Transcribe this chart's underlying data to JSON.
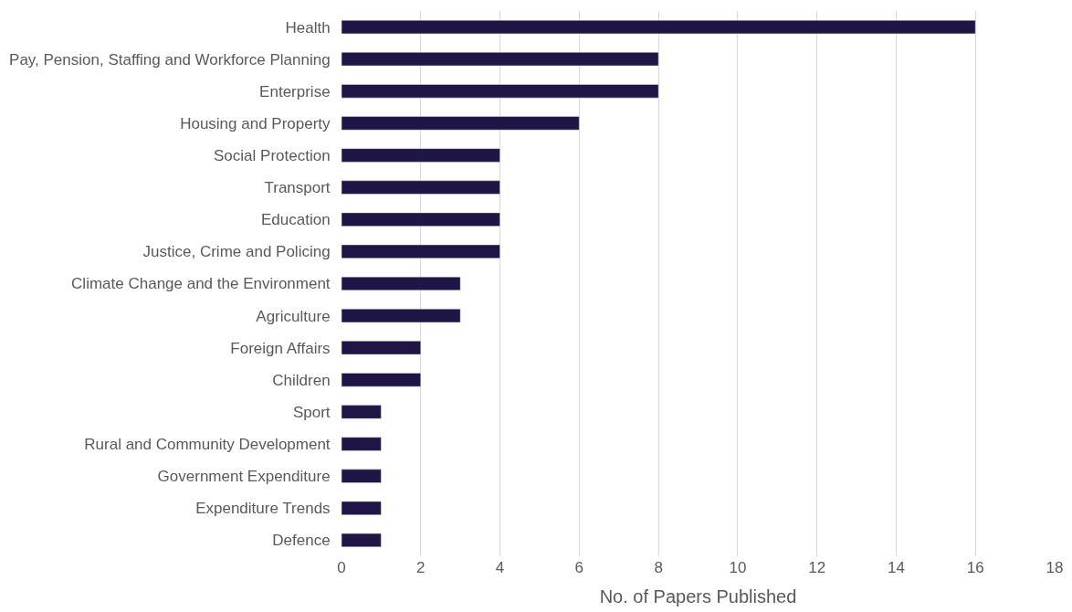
{
  "chart_data": {
    "type": "bar",
    "orientation": "horizontal",
    "xlabel": "No. of Papers Published",
    "categories": [
      "Health",
      "Pay, Pension, Staffing and Workforce Planning",
      "Enterprise",
      "Housing and Property",
      "Social Protection",
      "Transport",
      "Education",
      "Justice, Crime and Policing",
      "Climate Change and the Environment",
      "Agriculture",
      "Foreign Affairs",
      "Children",
      "Sport",
      "Rural and Community Development",
      "Government Expenditure",
      "Expenditure Trends",
      "Defence"
    ],
    "values": [
      16,
      8,
      8,
      6,
      4,
      4,
      4,
      4,
      3,
      3,
      2,
      2,
      1,
      1,
      1,
      1,
      1
    ],
    "color": "#1f1646",
    "xlim": [
      0,
      18
    ],
    "xticks": [
      0,
      2,
      4,
      6,
      8,
      10,
      12,
      14,
      16,
      18
    ],
    "grid": "x",
    "legend": false
  }
}
